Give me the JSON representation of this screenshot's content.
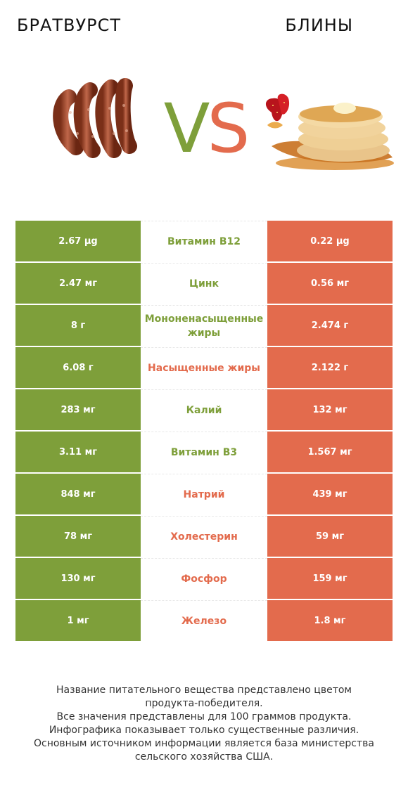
{
  "header": {
    "left_title": "БРАТВУРСТ",
    "right_title": "БЛИНЫ",
    "vs_v": "V",
    "vs_s": "S"
  },
  "colors": {
    "winner_left": "#7e9f3a",
    "winner_right": "#e36b4d"
  },
  "rows": [
    {
      "left": "2.67 µg",
      "name": "Витамин B12",
      "right": "0.22 µg",
      "winner": "left"
    },
    {
      "left": "2.47 мг",
      "name": "Цинк",
      "right": "0.56 мг",
      "winner": "left"
    },
    {
      "left": "8 г",
      "name": "Мононенасыщенные жиры",
      "right": "2.474 г",
      "winner": "left"
    },
    {
      "left": "6.08 г",
      "name": "Насыщенные жиры",
      "right": "2.122 г",
      "winner": "right"
    },
    {
      "left": "283 мг",
      "name": "Калий",
      "right": "132 мг",
      "winner": "left"
    },
    {
      "left": "3.11 мг",
      "name": "Витамин B3",
      "right": "1.567 мг",
      "winner": "left"
    },
    {
      "left": "848 мг",
      "name": "Натрий",
      "right": "439 мг",
      "winner": "right"
    },
    {
      "left": "78 мг",
      "name": "Холестерин",
      "right": "59 мг",
      "winner": "right"
    },
    {
      "left": "130 мг",
      "name": "Фосфор",
      "right": "159 мг",
      "winner": "right"
    },
    {
      "left": "1 мг",
      "name": "Железо",
      "right": "1.8 мг",
      "winner": "right"
    }
  ],
  "footer": {
    "line1": "Название питательного вещества представлено цветом",
    "line2": "продукта-победителя.",
    "line3": "Все значения представлены для 100 граммов продукта.",
    "line4": "Инфографика показывает только существенные различия.",
    "line5": "Основным источником информации является база министерства",
    "line6": "сельского хозяйства США."
  }
}
